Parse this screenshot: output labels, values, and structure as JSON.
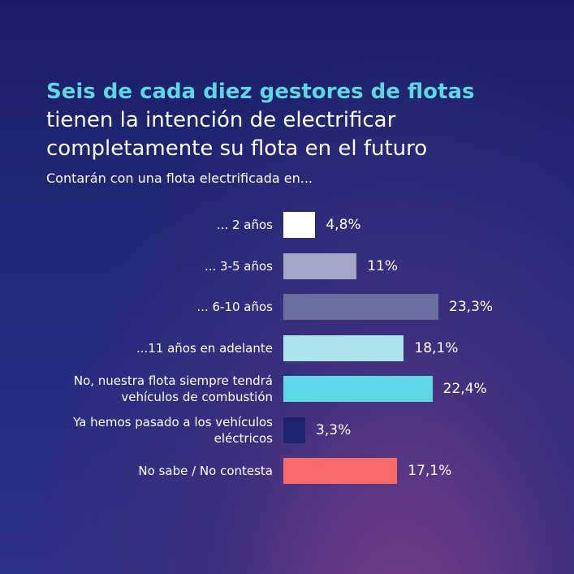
{
  "chart_data": {
    "type": "bar",
    "orientation": "horizontal",
    "title_highlight": "Seis de cada diez gestores de flotas",
    "title": "tienen la intención de electrificar completamente su flota en el futuro",
    "subtitle": "Contarán con una flota electrificada en...",
    "categories": [
      "... 2 años",
      "... 3-5 años",
      "... 6-10 años",
      "...11 años en adelante",
      "No, nuestra flota siempre tendrá vehículos de combustión",
      "Ya hemos pasado a los vehículos eléctricos",
      "No sabe / No contesta"
    ],
    "values": [
      4.8,
      11,
      23.3,
      18.1,
      22.4,
      3.3,
      17.1
    ],
    "value_labels": [
      "4,8%",
      "11%",
      "23,3%",
      "18,1%",
      "22,4%",
      "3,3%",
      "17,1%"
    ],
    "colors": [
      "#ffffff",
      "#a4a6c8",
      "#6b6e9e",
      "#aee4ee",
      "#5ed6e3",
      "#1e2470",
      "#f96a6a"
    ]
  }
}
